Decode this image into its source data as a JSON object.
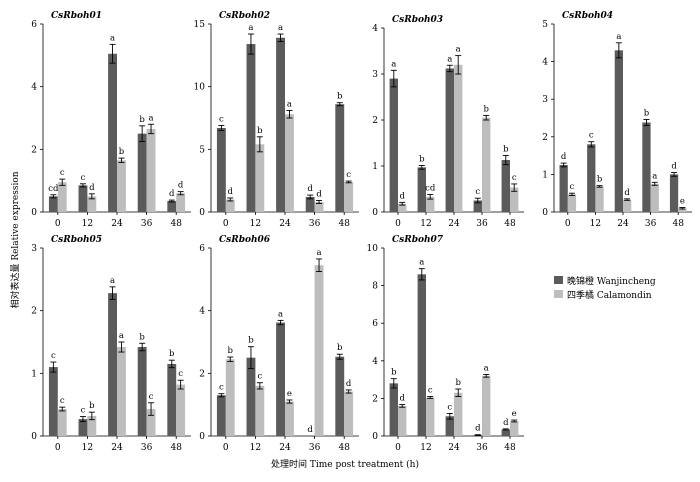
{
  "figure": {
    "ylabel": "相对表达量 Relative expression",
    "xlabel": "处理时间 Time post treatment (h)"
  },
  "colors": {
    "wanjincheng": "#5b5b5b",
    "calamondin": "#bdbdbd"
  },
  "legend": {
    "items": [
      {
        "label": "晚锦橙 Wanjincheng",
        "series": "wanjincheng"
      },
      {
        "label": "四季橘 Calamondin",
        "series": "calamondin"
      }
    ]
  },
  "chart_data": [
    {
      "type": "bar",
      "title": "CsRboh01",
      "categories": [
        "0",
        "12",
        "24",
        "36",
        "48"
      ],
      "ylim": [
        0,
        6
      ],
      "yticks": [
        0,
        2,
        4,
        6
      ],
      "series": [
        {
          "name": "晚锦橙 Wanjincheng",
          "values": [
            0.5,
            0.85,
            5.05,
            2.5,
            0.35
          ],
          "errors": [
            0.05,
            0.05,
            0.3,
            0.25,
            0.03
          ],
          "letters": [
            "cd",
            "c",
            "a",
            "b",
            "d"
          ]
        },
        {
          "name": "四季橘 Calamondin",
          "values": [
            0.95,
            0.5,
            1.65,
            2.65,
            0.6
          ],
          "errors": [
            0.1,
            0.08,
            0.07,
            0.15,
            0.05
          ],
          "letters": [
            "c",
            "d",
            "b",
            "a",
            "d"
          ]
        }
      ]
    },
    {
      "type": "bar",
      "title": "CsRboh02",
      "categories": [
        "0",
        "12",
        "24",
        "36",
        "48"
      ],
      "ylim": [
        0,
        15
      ],
      "yticks": [
        0,
        5,
        10,
        15
      ],
      "series": [
        {
          "name": "晚锦橙 Wanjincheng",
          "values": [
            6.7,
            13.4,
            13.9,
            1.2,
            8.6
          ],
          "errors": [
            0.2,
            0.8,
            0.3,
            0.15,
            0.12
          ],
          "letters": [
            "c",
            "a",
            "a",
            "d",
            "b"
          ]
        },
        {
          "name": "四季橘 Calamondin",
          "values": [
            1.0,
            5.4,
            7.8,
            0.8,
            2.4
          ],
          "errors": [
            0.12,
            0.6,
            0.3,
            0.12,
            0.07
          ],
          "letters": [
            "d",
            "b",
            "a",
            "d",
            "c"
          ]
        }
      ]
    },
    {
      "type": "bar",
      "title": "CsRboh03",
      "categories": [
        "0",
        "12",
        "24",
        "36",
        "48"
      ],
      "ylim": [
        0,
        4
      ],
      "yticks": [
        0,
        1,
        2,
        3,
        4
      ],
      "series": [
        {
          "name": "晚锦橙 Wanjincheng",
          "values": [
            2.9,
            0.97,
            3.12,
            0.25,
            1.13
          ],
          "errors": [
            0.18,
            0.04,
            0.07,
            0.05,
            0.1
          ],
          "letters": [
            "a",
            "b",
            "a",
            "c",
            "b"
          ]
        },
        {
          "name": "四季橘 Calamondin",
          "values": [
            0.18,
            0.33,
            3.2,
            2.05,
            0.53
          ],
          "errors": [
            0.03,
            0.05,
            0.2,
            0.05,
            0.08
          ],
          "letters": [
            "d",
            "cd",
            "a",
            "b",
            "c"
          ]
        }
      ]
    },
    {
      "type": "bar",
      "title": "CsRboh04",
      "categories": [
        "0",
        "12",
        "24",
        "36",
        "48"
      ],
      "ylim": [
        0,
        5
      ],
      "yticks": [
        0,
        1,
        2,
        3,
        4,
        5
      ],
      "series": [
        {
          "name": "晚锦橙 Wanjincheng",
          "values": [
            1.25,
            1.8,
            4.3,
            2.38,
            1.0
          ],
          "errors": [
            0.05,
            0.07,
            0.2,
            0.08,
            0.05
          ],
          "letters": [
            "d",
            "c",
            "a",
            "b",
            "d"
          ]
        },
        {
          "name": "四季橘 Calamondin",
          "values": [
            0.47,
            0.68,
            0.33,
            0.75,
            0.1
          ],
          "errors": [
            0.03,
            0.02,
            0.02,
            0.04,
            0.02
          ],
          "letters": [
            "c",
            "b",
            "d",
            "a",
            "e"
          ]
        }
      ]
    },
    {
      "type": "bar",
      "title": "CsRboh05",
      "categories": [
        "0",
        "12",
        "24",
        "36",
        "48"
      ],
      "ylim": [
        0,
        3
      ],
      "yticks": [
        0,
        1,
        2,
        3
      ],
      "series": [
        {
          "name": "晚锦橙 Wanjincheng",
          "values": [
            1.1,
            0.27,
            2.28,
            1.42,
            1.15
          ],
          "errors": [
            0.08,
            0.04,
            0.1,
            0.06,
            0.06
          ],
          "letters": [
            "c",
            "c",
            "a",
            "b",
            "b"
          ]
        },
        {
          "name": "四季橘 Calamondin",
          "values": [
            0.43,
            0.32,
            1.42,
            0.43,
            0.82
          ],
          "errors": [
            0.03,
            0.06,
            0.08,
            0.1,
            0.07
          ],
          "letters": [
            "c",
            "b",
            "a",
            "c",
            "c"
          ]
        }
      ]
    },
    {
      "type": "bar",
      "title": "CsRboh06",
      "categories": [
        "0",
        "12",
        "24",
        "36",
        "48"
      ],
      "ylim": [
        0,
        6
      ],
      "yticks": [
        0,
        2,
        4,
        6
      ],
      "series": [
        {
          "name": "晚锦橙 Wanjincheng",
          "values": [
            1.3,
            2.5,
            3.62,
            0.0,
            2.53
          ],
          "errors": [
            0.05,
            0.35,
            0.07,
            0.0,
            0.08
          ],
          "letters": [
            "c",
            "b",
            "a",
            "d",
            "b"
          ]
        },
        {
          "name": "四季橘 Calamondin",
          "values": [
            2.45,
            1.6,
            1.1,
            5.45,
            1.42
          ],
          "errors": [
            0.07,
            0.1,
            0.05,
            0.2,
            0.05
          ],
          "letters": [
            "b",
            "c",
            "e",
            "a",
            "d"
          ]
        }
      ]
    },
    {
      "type": "bar",
      "title": "CsRboh07",
      "categories": [
        "0",
        "12",
        "24",
        "36",
        "48"
      ],
      "ylim": [
        0,
        10
      ],
      "yticks": [
        0,
        2,
        4,
        6,
        8,
        10
      ],
      "series": [
        {
          "name": "晚锦橙 Wanjincheng",
          "values": [
            2.8,
            8.6,
            1.05,
            0.05,
            0.35
          ],
          "errors": [
            0.25,
            0.3,
            0.15,
            0.02,
            0.03
          ],
          "letters": [
            "b",
            "a",
            "c",
            "d",
            "d"
          ]
        },
        {
          "name": "四季橘 Calamondin",
          "values": [
            1.6,
            2.05,
            2.3,
            3.2,
            0.8
          ],
          "errors": [
            0.07,
            0.05,
            0.2,
            0.07,
            0.05
          ],
          "letters": [
            "d",
            "c",
            "b",
            "a",
            "e"
          ]
        }
      ]
    }
  ]
}
